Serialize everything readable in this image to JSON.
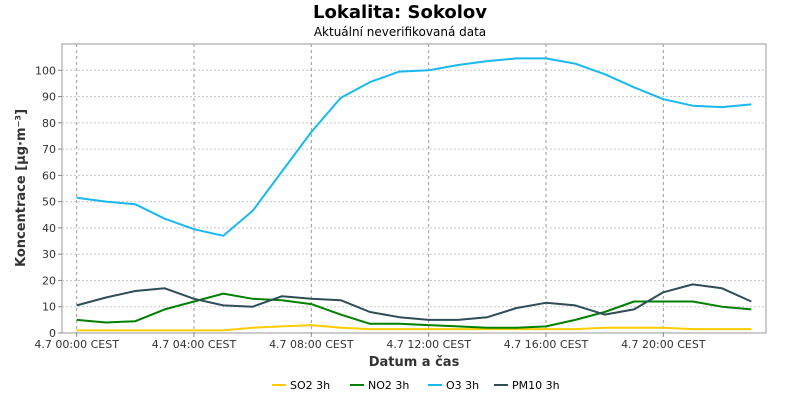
{
  "chart_data": {
    "type": "line",
    "title": "Lokalita: Sokolov",
    "subtitle": "Aktuální neverifikovaná data",
    "xlabel": "Datum a čas",
    "ylabel": "Koncentrace [µg·m⁻³]",
    "xlim": [
      -0.5,
      23.5
    ],
    "ylim": [
      0,
      110
    ],
    "grid": true,
    "legend_position": "bottom",
    "x_ticks": [
      {
        "x": 0,
        "label": "4.7 00:00 CEST"
      },
      {
        "x": 4,
        "label": "4.7 04:00 CEST"
      },
      {
        "x": 8,
        "label": "4.7 08:00 CEST"
      },
      {
        "x": 12,
        "label": "4.7 12:00 CEST"
      },
      {
        "x": 16,
        "label": "4.7 16:00 CEST"
      },
      {
        "x": 20,
        "label": "4.7 20:00 CEST"
      }
    ],
    "y_ticks": [
      0,
      10,
      20,
      30,
      40,
      50,
      60,
      70,
      80,
      90,
      100
    ],
    "x": [
      0,
      1,
      2,
      3,
      4,
      5,
      6,
      7,
      8,
      9,
      10,
      11,
      12,
      13,
      14,
      15,
      16,
      17,
      18,
      19,
      20,
      21,
      22,
      23
    ],
    "series": [
      {
        "name": "SO2 3h",
        "color": "#ffcc00",
        "values": [
          1,
          1,
          1,
          1,
          1,
          1,
          2,
          2.5,
          3,
          2,
          1.5,
          1.5,
          1.5,
          1.5,
          1.5,
          1.5,
          1.5,
          1.5,
          2,
          2,
          2,
          1.5,
          1.5,
          1.5
        ]
      },
      {
        "name": "NO2 3h",
        "color": "#008000",
        "values": [
          5,
          4,
          4.5,
          9,
          12,
          15,
          13,
          12.5,
          11,
          7,
          3.5,
          3.5,
          3,
          2.5,
          2,
          2,
          2.5,
          5,
          8,
          12,
          12,
          12,
          10,
          9
        ]
      },
      {
        "name": "O3 3h",
        "color": "#1ab8f0",
        "values": [
          51.5,
          50,
          49,
          43.5,
          39.5,
          37,
          46.5,
          61.5,
          76.5,
          89.5,
          95.5,
          99.5,
          100,
          102,
          103.5,
          104.5,
          104.5,
          102.5,
          98.5,
          93.5,
          89,
          86.5,
          86,
          87
        ]
      },
      {
        "name": "PM10 3h",
        "color": "#2e4d57",
        "values": [
          10.5,
          13.5,
          16,
          17,
          13,
          10.5,
          10,
          14,
          13,
          12.5,
          8,
          6,
          5,
          5,
          6,
          9.5,
          11.5,
          10.5,
          7,
          9,
          15.5,
          18.5,
          17,
          12
        ]
      }
    ]
  }
}
